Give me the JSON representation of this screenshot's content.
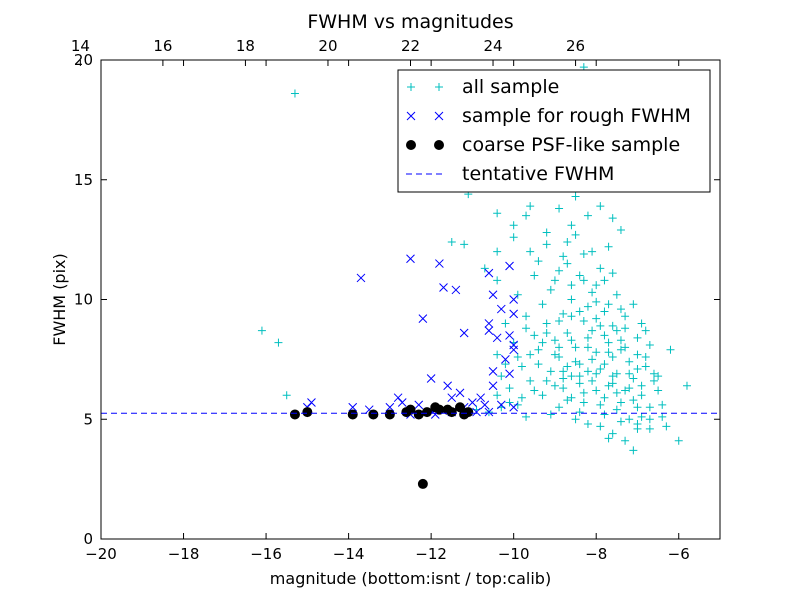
{
  "chart_data": {
    "type": "scatter",
    "title": "FWHM vs magnitudes",
    "xlabel": "magnitude (bottom:isnt / top:calib)",
    "ylabel": "FWHM (pix)",
    "xlim": [
      -20,
      -5
    ],
    "ylim": [
      0,
      20
    ],
    "x_ticks": [
      "−20",
      "−18",
      "−16",
      "−14",
      "−12",
      "−10",
      "−8",
      "−6"
    ],
    "x_tick_values": [
      -20,
      -18,
      -16,
      -14,
      -12,
      -10,
      -8,
      -6
    ],
    "y_ticks": [
      "0",
      "5",
      "10",
      "15",
      "20"
    ],
    "y_tick_values": [
      0,
      5,
      10,
      15,
      20
    ],
    "top_axis": {
      "offset": 34.5,
      "ticks": [
        "14",
        "16",
        "18",
        "20",
        "22",
        "24",
        "26"
      ],
      "tick_values": [
        14,
        16,
        18,
        20,
        22,
        24,
        26
      ]
    },
    "grid": false,
    "legend_position": "top-right",
    "series": [
      {
        "name": "all sample",
        "marker": "plus",
        "color": "#00bfbf",
        "points": [
          [
            -15.3,
            18.6
          ],
          [
            -16.1,
            8.7
          ],
          [
            -15.7,
            8.2
          ],
          [
            -15.5,
            6.0
          ],
          [
            -11.4,
            14.8
          ],
          [
            -11.1,
            14.4
          ],
          [
            -10.6,
            15.7
          ],
          [
            -11.5,
            12.4
          ],
          [
            -11.2,
            12.3
          ],
          [
            -10.4,
            12.0
          ],
          [
            -10.7,
            11.3
          ],
          [
            -10.4,
            10.8
          ],
          [
            -8.3,
            19.7
          ],
          [
            -8.9,
            17.2
          ],
          [
            -9.3,
            16.1
          ],
          [
            -9.8,
            15.4
          ],
          [
            -9.5,
            14.9
          ],
          [
            -9.0,
            14.7
          ],
          [
            -8.5,
            14.3
          ],
          [
            -7.9,
            13.9
          ],
          [
            -7.6,
            13.4
          ],
          [
            -7.4,
            12.9
          ],
          [
            -8.6,
            13.1
          ],
          [
            -9.7,
            13.5
          ],
          [
            -10.0,
            13.1
          ],
          [
            -10.4,
            13.6
          ],
          [
            -9.2,
            12.8
          ],
          [
            -9.6,
            12.0
          ],
          [
            -10.0,
            12.6
          ],
          [
            -6.8,
            8.7
          ],
          [
            -6.2,
            7.9
          ],
          [
            -5.8,
            6.4
          ],
          [
            -6.5,
            6.8
          ],
          [
            -6.4,
            5.6
          ],
          [
            -6.0,
            4.1
          ],
          [
            -6.7,
            4.6
          ],
          [
            -7.3,
            4.1
          ],
          [
            -7.1,
            3.7
          ],
          [
            -10.4,
            7.7
          ],
          [
            -10.3,
            6.8
          ],
          [
            -10.1,
            6.3
          ],
          [
            -10.4,
            6.0
          ],
          [
            -10.9,
            5.4
          ],
          [
            -10.6,
            5.3
          ],
          [
            -9.9,
            5.6
          ],
          [
            -9.7,
            5.1
          ],
          [
            -9.1,
            5.2
          ],
          [
            -8.7,
            5.8
          ],
          [
            -8.5,
            5.0
          ],
          [
            -8.2,
            4.8
          ],
          [
            -7.9,
            4.7
          ],
          [
            -7.6,
            4.4
          ],
          [
            -7.5,
            5.4
          ],
          [
            -7.2,
            5.0
          ],
          [
            -6.9,
            5.1
          ],
          [
            -7.7,
            4.2
          ],
          [
            -7.0,
            4.8
          ],
          [
            -9.4,
            11.6
          ],
          [
            -8.9,
            11.2
          ],
          [
            -8.4,
            11.0
          ],
          [
            -8.0,
            10.6
          ],
          [
            -9.1,
            10.4
          ],
          [
            -8.6,
            10.0
          ],
          [
            -8.2,
            9.7
          ],
          [
            -7.8,
            9.5
          ],
          [
            -9.3,
            9.8
          ],
          [
            -8.8,
            9.4
          ],
          [
            -8.3,
            9.1
          ],
          [
            -7.9,
            8.9
          ],
          [
            -7.5,
            8.7
          ],
          [
            -9.2,
            9.0
          ],
          [
            -8.7,
            8.6
          ],
          [
            -8.2,
            8.4
          ],
          [
            -7.7,
            8.2
          ],
          [
            -7.3,
            8.0
          ],
          [
            -9.0,
            8.3
          ],
          [
            -8.5,
            8.0
          ],
          [
            -8.0,
            7.8
          ],
          [
            -7.6,
            7.6
          ],
          [
            -7.2,
            7.4
          ],
          [
            -9.4,
            7.9
          ],
          [
            -8.9,
            7.6
          ],
          [
            -8.4,
            7.3
          ],
          [
            -7.9,
            7.1
          ],
          [
            -7.5,
            6.9
          ],
          [
            -7.1,
            6.7
          ],
          [
            -9.1,
            7.0
          ],
          [
            -8.6,
            6.8
          ],
          [
            -8.1,
            6.6
          ],
          [
            -7.7,
            6.4
          ],
          [
            -7.3,
            6.2
          ],
          [
            -6.9,
            6.0
          ],
          [
            -9.6,
            6.6
          ],
          [
            -8.8,
            6.3
          ],
          [
            -8.3,
            6.1
          ],
          [
            -7.8,
            5.9
          ],
          [
            -7.4,
            5.7
          ],
          [
            -7.0,
            5.5
          ],
          [
            -9.8,
            7.2
          ],
          [
            -9.5,
            8.5
          ],
          [
            -9.7,
            9.3
          ],
          [
            -9.9,
            10.2
          ],
          [
            -8.1,
            12.0
          ],
          [
            -8.7,
            12.4
          ],
          [
            -7.9,
            11.3
          ],
          [
            -7.5,
            10.2
          ],
          [
            -7.3,
            9.3
          ],
          [
            -7.0,
            8.4
          ],
          [
            -6.8,
            7.6
          ],
          [
            -6.6,
            6.9
          ],
          [
            -6.5,
            6.2
          ],
          [
            -8.9,
            5.5
          ],
          [
            -8.4,
            5.3
          ],
          [
            -7.8,
            5.2
          ],
          [
            -7.4,
            4.9
          ],
          [
            -7.0,
            4.6
          ],
          [
            -6.7,
            5.0
          ],
          [
            -9.3,
            6.0
          ],
          [
            -8.0,
            9.9
          ],
          [
            -8.3,
            10.8
          ],
          [
            -8.8,
            11.8
          ],
          [
            -9.2,
            12.3
          ],
          [
            -8.5,
            12.7
          ],
          [
            -8.2,
            13.5
          ],
          [
            -8.9,
            13.8
          ],
          [
            -9.6,
            13.9
          ],
          [
            -7.7,
            12.2
          ],
          [
            -7.6,
            11.1
          ],
          [
            -7.1,
            9.8
          ],
          [
            -6.9,
            9.0
          ],
          [
            -6.7,
            8.1
          ],
          [
            -10.2,
            9.0
          ],
          [
            -10.0,
            8.2
          ],
          [
            -9.9,
            7.6
          ],
          [
            -10.2,
            7.3
          ],
          [
            -8.6,
            9.3
          ],
          [
            -8.1,
            8.7
          ],
          [
            -7.6,
            8.9
          ],
          [
            -7.4,
            7.9
          ],
          [
            -7.8,
            7.3
          ],
          [
            -8.2,
            7.0
          ],
          [
            -8.7,
            7.2
          ],
          [
            -9.0,
            7.7
          ],
          [
            -7.2,
            6.9
          ],
          [
            -7.6,
            6.5
          ],
          [
            -8.0,
            6.2
          ],
          [
            -8.4,
            6.5
          ],
          [
            -8.6,
            5.9
          ],
          [
            -6.9,
            6.4
          ],
          [
            -6.7,
            5.5
          ],
          [
            -6.4,
            5.1
          ],
          [
            -6.3,
            4.7
          ],
          [
            -7.1,
            5.8
          ],
          [
            -7.5,
            6.1
          ],
          [
            -7.9,
            5.6
          ],
          [
            -8.3,
            5.7
          ],
          [
            -8.8,
            6.7
          ],
          [
            -9.0,
            6.4
          ],
          [
            -9.4,
            7.3
          ],
          [
            -9.6,
            7.7
          ],
          [
            -9.2,
            8.6
          ],
          [
            -8.9,
            9.1
          ],
          [
            -8.4,
            9.5
          ],
          [
            -8.0,
            9.2
          ],
          [
            -7.7,
            9.8
          ],
          [
            -8.1,
            10.3
          ],
          [
            -8.6,
            10.6
          ],
          [
            -9.0,
            10.8
          ],
          [
            -9.5,
            11.0
          ],
          [
            -8.7,
            11.5
          ],
          [
            -8.3,
            11.9
          ],
          [
            -7.8,
            10.8
          ],
          [
            -7.4,
            9.6
          ],
          [
            -7.3,
            8.8
          ],
          [
            -7.0,
            7.7
          ],
          [
            -6.8,
            7.2
          ],
          [
            -6.6,
            6.6
          ],
          [
            -7.7,
            7.8
          ],
          [
            -8.1,
            7.5
          ],
          [
            -8.5,
            7.4
          ],
          [
            -8.9,
            8.0
          ],
          [
            -9.3,
            8.2
          ],
          [
            -9.7,
            8.8
          ],
          [
            -8.6,
            8.3
          ],
          [
            -8.2,
            8.0
          ],
          [
            -7.8,
            8.5
          ],
          [
            -7.4,
            8.3
          ],
          [
            -7.0,
            7.1
          ],
          [
            -7.2,
            6.3
          ],
          [
            -7.6,
            6.8
          ],
          [
            -8.0,
            6.9
          ],
          [
            -8.4,
            6.8
          ],
          [
            -8.8,
            7.0
          ],
          [
            -9.2,
            6.6
          ],
          [
            -9.5,
            6.2
          ],
          [
            -9.8,
            5.9
          ],
          [
            -10.1,
            5.7
          ],
          [
            -10.3,
            5.5
          ]
        ]
      },
      {
        "name": "sample for rough FWHM",
        "marker": "x",
        "color": "#0000ff",
        "points": [
          [
            -13.7,
            10.9
          ],
          [
            -12.5,
            11.7
          ],
          [
            -11.8,
            11.5
          ],
          [
            -11.7,
            10.5
          ],
          [
            -11.4,
            10.4
          ],
          [
            -12.2,
            9.2
          ],
          [
            -11.2,
            8.6
          ],
          [
            -10.6,
            11.1
          ],
          [
            -10.1,
            11.4
          ],
          [
            -10.5,
            10.2
          ],
          [
            -10.0,
            10.0
          ],
          [
            -10.3,
            9.6
          ],
          [
            -10.0,
            9.4
          ],
          [
            -10.6,
            9.0
          ],
          [
            -10.6,
            8.7
          ],
          [
            -10.4,
            8.4
          ],
          [
            -10.1,
            8.5
          ],
          [
            -10.0,
            8.1
          ],
          [
            -10.0,
            7.9
          ],
          [
            -10.2,
            7.5
          ],
          [
            -10.5,
            7.0
          ],
          [
            -10.1,
            6.9
          ],
          [
            -10.5,
            6.4
          ],
          [
            -12.0,
            6.7
          ],
          [
            -11.6,
            6.4
          ],
          [
            -11.3,
            6.1
          ],
          [
            -10.8,
            5.9
          ],
          [
            -11.5,
            5.9
          ],
          [
            -11.0,
            5.7
          ],
          [
            -10.7,
            5.6
          ],
          [
            -10.3,
            5.6
          ],
          [
            -10.0,
            5.5
          ],
          [
            -12.8,
            5.9
          ],
          [
            -12.7,
            5.7
          ],
          [
            -13.0,
            5.5
          ],
          [
            -13.5,
            5.4
          ],
          [
            -13.9,
            5.5
          ],
          [
            -14.9,
            5.7
          ],
          [
            -15.0,
            5.5
          ],
          [
            -12.3,
            5.6
          ],
          [
            -11.9,
            5.4
          ],
          [
            -11.5,
            5.3
          ],
          [
            -11.2,
            5.5
          ],
          [
            -10.9,
            5.3
          ],
          [
            -10.6,
            5.3
          ],
          [
            -12.5,
            5.2
          ],
          [
            -11.9,
            5.2
          ]
        ]
      },
      {
        "name": "coarse PSF-like sample",
        "marker": "circle",
        "color": "#000000",
        "points": [
          [
            -15.3,
            5.2
          ],
          [
            -15.0,
            5.3
          ],
          [
            -13.9,
            5.2
          ],
          [
            -13.4,
            5.2
          ],
          [
            -13.0,
            5.2
          ],
          [
            -12.6,
            5.3
          ],
          [
            -12.5,
            5.4
          ],
          [
            -12.3,
            5.2
          ],
          [
            -12.1,
            5.3
          ],
          [
            -11.9,
            5.5
          ],
          [
            -11.8,
            5.4
          ],
          [
            -11.6,
            5.4
          ],
          [
            -11.5,
            5.3
          ],
          [
            -11.3,
            5.5
          ],
          [
            -11.2,
            5.2
          ],
          [
            -11.1,
            5.3
          ],
          [
            -12.2,
            2.3
          ]
        ]
      },
      {
        "name": "tentative FWHM",
        "marker": "dashed-line",
        "color": "#0000ff",
        "y": 5.25
      }
    ]
  }
}
